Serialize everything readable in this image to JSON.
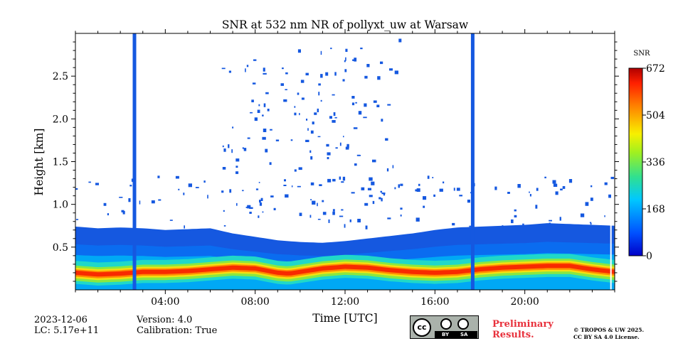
{
  "chart_data": {
    "type": "heatmap",
    "title": "SNR at 532 nm NR of pollyxt_uw at Warsaw",
    "xlabel": "Time [UTC]",
    "ylabel": "Height [km]",
    "xlim": [
      0,
      24
    ],
    "ylim": [
      0,
      3.0
    ],
    "x_ticks": [
      {
        "value": 4,
        "label": "04:00"
      },
      {
        "value": 8,
        "label": "08:00"
      },
      {
        "value": 12,
        "label": "12:00"
      },
      {
        "value": 16,
        "label": "16:00"
      },
      {
        "value": 20,
        "label": "20:00"
      }
    ],
    "y_ticks": [
      {
        "value": 0.5,
        "label": "0.5"
      },
      {
        "value": 1.0,
        "label": "1.0"
      },
      {
        "value": 1.5,
        "label": "1.5"
      },
      {
        "value": 2.0,
        "label": "2.0"
      },
      {
        "value": 2.5,
        "label": "2.5"
      }
    ],
    "colorbar": {
      "label": "SNR",
      "range": [
        0,
        672
      ],
      "ticks": [
        "0",
        "168",
        "336",
        "504",
        "672"
      ],
      "colormap": "jet"
    },
    "layer_top_profile": [
      [
        0,
        0.74
      ],
      [
        1,
        0.72
      ],
      [
        2,
        0.73
      ],
      [
        3,
        0.72
      ],
      [
        4,
        0.7
      ],
      [
        5,
        0.71
      ],
      [
        6,
        0.72
      ],
      [
        7,
        0.66
      ],
      [
        8,
        0.62
      ],
      [
        9,
        0.58
      ],
      [
        10,
        0.56
      ],
      [
        11,
        0.55
      ],
      [
        12,
        0.57
      ],
      [
        13,
        0.6
      ],
      [
        14,
        0.63
      ],
      [
        15,
        0.66
      ],
      [
        16,
        0.7
      ],
      [
        17,
        0.73
      ],
      [
        18,
        0.74
      ],
      [
        19,
        0.75
      ],
      [
        20,
        0.76
      ],
      [
        21,
        0.78
      ],
      [
        22,
        0.77
      ],
      [
        23,
        0.76
      ],
      [
        24,
        0.75
      ]
    ],
    "peak_snr_height_profile": [
      [
        0,
        0.2
      ],
      [
        1,
        0.18
      ],
      [
        2,
        0.19
      ],
      [
        3,
        0.21
      ],
      [
        4,
        0.21
      ],
      [
        5,
        0.22
      ],
      [
        6,
        0.24
      ],
      [
        7,
        0.26
      ],
      [
        8,
        0.25
      ],
      [
        9,
        0.2
      ],
      [
        9.5,
        0.19
      ],
      [
        10,
        0.21
      ],
      [
        11,
        0.25
      ],
      [
        12,
        0.27
      ],
      [
        13,
        0.26
      ],
      [
        14,
        0.23
      ],
      [
        15,
        0.21
      ],
      [
        16,
        0.2
      ],
      [
        17,
        0.21
      ],
      [
        18,
        0.24
      ],
      [
        19,
        0.26
      ],
      [
        20,
        0.27
      ],
      [
        21,
        0.28
      ],
      [
        22,
        0.28
      ],
      [
        23,
        0.24
      ],
      [
        24,
        0.21
      ]
    ],
    "gaps_time": [
      2.55,
      17.6,
      23.4
    ],
    "data_end_time": 23.8
  },
  "meta": {
    "date": "2023-12-06",
    "lc": "LC: 5.17e+11",
    "version": "Version: 4.0",
    "calibration": "Calibration: True",
    "preliminary_line1": "Preliminary",
    "preliminary_line2": "Results.",
    "copyright_line1": "© TROPOS & UW 2025.",
    "copyright_line2": "CC BY SA 4.0 License.",
    "cc_badge": {
      "mark": "cc",
      "by": "BY",
      "sa": "SA"
    }
  },
  "colors": {
    "low": "#1155dd",
    "high": "#cc1100"
  }
}
